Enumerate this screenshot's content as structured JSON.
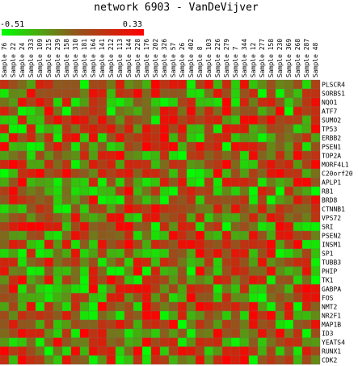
{
  "chart_data": {
    "type": "heatmap",
    "title": "network 6903 - VanDeVijver",
    "color_scale": {
      "min": -0.51,
      "max": 0.33,
      "min_label": "-0.51",
      "max_label": "0.33",
      "low_color": "#00ff00",
      "mid_color": "#8c5a1e",
      "high_color": "#ff0000"
    },
    "columns": [
      "Sample 76",
      "Sample 22",
      "Sample 24",
      "Sample 333",
      "Sample 109",
      "Sample 215",
      "Sample 239",
      "Sample 158",
      "Sample 310",
      "Sample 181",
      "Sample 164",
      "Sample 141",
      "Sample 212",
      "Sample 113",
      "Sample 144",
      "Sample 228",
      "Sample 176",
      "Sample 202",
      "Sample 326",
      "Sample 57",
      "Sample 26",
      "Sample 402",
      "Sample 8",
      "Sample 103",
      "Sample 226",
      "Sample 279",
      "Sample 7",
      "Sample 344",
      "Sample 12",
      "Sample 277",
      "Sample 158",
      "Sample 230",
      "Sample 369",
      "Sample 268",
      "Sample 287",
      "Sample 48"
    ],
    "rows": [
      "PLSCR4",
      "SORBS1",
      "NQO1",
      "ATF7",
      "SUMO2",
      "TP53",
      "ERBB2",
      "PSEN1",
      "TOP2A",
      "MORF4L1",
      "C20orf20",
      "APLP1",
      "RB1",
      "BRD8",
      "CTNNB1",
      "VPS72",
      "SRI",
      "PSEN2",
      "INSM1",
      "SP1",
      "TUBB3",
      "PHIP",
      "TK1",
      "GABPA",
      "FOS",
      "NMT2",
      "NR2F1",
      "MAP1B",
      "ID3",
      "YEATS4",
      "RUNX1",
      "CDK2"
    ]
  }
}
